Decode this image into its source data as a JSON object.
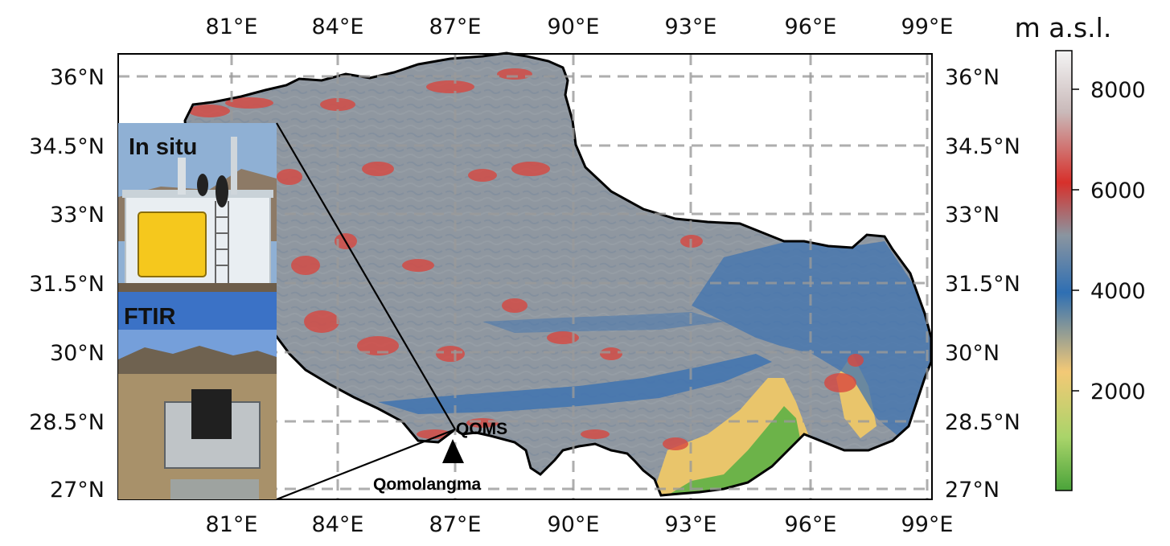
{
  "map": {
    "colorbar_unit": "m a.s.l.",
    "lon_ticks": [
      "81°E",
      "84°E",
      "87°E",
      "90°E",
      "93°E",
      "96°E",
      "99°E"
    ],
    "lat_ticks": [
      "36°N",
      "34.5°N",
      "33°N",
      "31.5°N",
      "30°N",
      "28.5°N",
      "27°N"
    ],
    "colorbar": {
      "ticks": [
        "8000",
        "6000",
        "4000",
        "2000"
      ],
      "colors": [
        "#4aa33a",
        "#a9d46a",
        "#f3c976",
        "#2f6fb3",
        "#8a95a0",
        "#d7302b",
        "#c9b9b9",
        "#f4f4f4"
      ]
    },
    "terrain_colors": {
      "plateau": "#8f97a0",
      "valley": "#3f73b0",
      "peak": "#d9453d",
      "lowland": "#e9c56b",
      "forest": "#6cb349"
    },
    "site": {
      "name": "QOMS",
      "mountain": "Qomolangma"
    },
    "photos": [
      {
        "label": "In situ",
        "sky": "#8fb0d4",
        "building": "#e9eef2",
        "instrument": "#f5c81d"
      },
      {
        "label": "FTIR",
        "sky": "#3b72c6",
        "ground": "#a8916a",
        "instrument": "#202020"
      }
    ]
  }
}
